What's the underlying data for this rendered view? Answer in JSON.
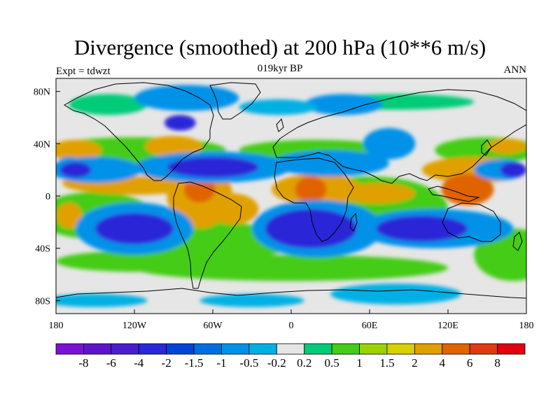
{
  "title": "Divergence (smoothed) at 200 hPa (10**6 m/s)",
  "subtitle_center": "019kyr BP",
  "subtitle_left": "Expt = tdwzt",
  "subtitle_right": "ANN",
  "axes": {
    "x_ticks": [
      "180",
      "120W",
      "60W",
      "0",
      "60E",
      "120E",
      "180"
    ],
    "y_ticks": [
      "80N",
      "40N",
      "0",
      "40S",
      "80S"
    ]
  },
  "colorbar": {
    "labels": [
      "-8",
      "-6",
      "-4",
      "-2",
      "-1.5",
      "-1",
      "-0.5",
      "-0.2",
      "0.2",
      "0.5",
      "1",
      "1.5",
      "2",
      "4",
      "6",
      "8"
    ],
    "colors": [
      "#7a12d6",
      "#5e14cc",
      "#4a1ed0",
      "#2a28d8",
      "#0044d8",
      "#006ee0",
      "#0092e8",
      "#00b0e4",
      "#e6e6e6",
      "#00cc78",
      "#44cc18",
      "#9ad200",
      "#d8d000",
      "#e0a000",
      "#e06400",
      "#e03a10",
      "#e00010"
    ]
  },
  "field_colors": {
    "neutral": "#e6e6e6",
    "weak_pos": "#00cc78",
    "pos": "#44cc18",
    "strong_pos": "#e0a000",
    "very_pos": "#e06400",
    "weak_neg": "#00b0e4",
    "neg": "#0092e8",
    "strong_neg": "#006ee0",
    "very_neg": "#2a28d8"
  }
}
